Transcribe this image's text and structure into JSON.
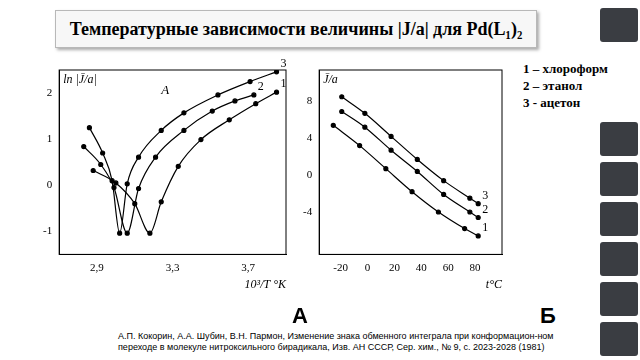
{
  "slide": {
    "title": "Температурные зависимости величины |J/a| для Pd(L₁)₂",
    "citation": "А.П. Кокорин, А.А. Шубин, В.Н. Пармон, Изменение знака обменного интеграла при конформацион-ном переходе в молекуле нитроксильного бирадикала, Изв. АН СССР, Сер. хим., № 9, с. 2023-2028 (1981)"
  },
  "chart_data": [
    {
      "type": "line",
      "title": "А",
      "annotations": [
        "A"
      ],
      "x_label": "10³/T °K",
      "y_label": "ln |J̄/a|",
      "xlim": [
        2.7,
        3.9
      ],
      "ylim": [
        -1.5,
        2.5
      ],
      "xticks": [
        {
          "value": 2.9,
          "label": "2,9"
        },
        {
          "value": 3.3,
          "label": "3,3"
        },
        {
          "value": 3.7,
          "label": "3,7"
        }
      ],
      "yticks": [
        -1,
        0,
        1,
        2
      ],
      "grid": false,
      "series": [
        {
          "name": "3",
          "color": "#000000",
          "marker": "circle",
          "line_style": "solid",
          "x": [
            2.86,
            2.93,
            2.98,
            3.02,
            3.06,
            3.12,
            3.24,
            3.36,
            3.54,
            3.71,
            3.85
          ],
          "values": [
            1.25,
            0.7,
            0.1,
            -1.04,
            0.03,
            0.61,
            1.19,
            1.57,
            1.96,
            2.25,
            2.46
          ]
        },
        {
          "name": "2",
          "color": "#000000",
          "marker": "circle",
          "line_style": "solid",
          "x": [
            2.83,
            2.92,
            2.99,
            3.06,
            3.12,
            3.21,
            3.36,
            3.51,
            3.63,
            3.73
          ],
          "values": [
            0.84,
            0.45,
            -0.05,
            -1.04,
            -0.07,
            0.61,
            1.19,
            1.61,
            1.83,
            1.96
          ]
        },
        {
          "name": "1",
          "color": "#000000",
          "marker": "circle",
          "line_style": "solid",
          "x": [
            2.88,
            3.0,
            3.1,
            3.18,
            3.24,
            3.33,
            3.45,
            3.6,
            3.74,
            3.85
          ],
          "values": [
            0.32,
            0.05,
            -0.4,
            -1.04,
            -0.36,
            0.41,
            0.99,
            1.42,
            1.77,
            2.02
          ]
        }
      ]
    },
    {
      "type": "line",
      "title": "Б",
      "annotations": [
        "1 – хлороформ",
        "2 – этанол",
        "3 - ацетон"
      ],
      "x_label": "t°C",
      "y_label": "J̄/a",
      "xlim": [
        -36,
        100
      ],
      "ylim": [
        -8.6,
        11.4
      ],
      "xticks": [
        -20,
        0,
        20,
        40,
        60,
        80
      ],
      "yticks": [
        -4,
        0,
        4,
        8
      ],
      "grid": false,
      "series": [
        {
          "name": "3",
          "color": "#000000",
          "marker": "circle",
          "line_style": "solid",
          "x": [
            -19.2,
            -2.0,
            17.5,
            37.0,
            56.6,
            76.1,
            82.3
          ],
          "values": [
            8.5,
            6.7,
            4.2,
            1.7,
            -0.6,
            -2.5,
            -3.1
          ]
        },
        {
          "name": "2",
          "color": "#000000",
          "marker": "circle",
          "line_style": "solid",
          "x": [
            -19.2,
            -2.0,
            17.5,
            37.0,
            56.6,
            76.1,
            82.3
          ],
          "values": [
            6.9,
            5.2,
            2.7,
            0.4,
            -2.1,
            -4.0,
            -4.6
          ]
        },
        {
          "name": "1",
          "color": "#000000",
          "marker": "circle",
          "line_style": "solid",
          "x": [
            -25.5,
            -5.9,
            13.6,
            33.1,
            52.7,
            72.2,
            82.3
          ],
          "values": [
            5.4,
            3.2,
            0.7,
            -1.8,
            -4.0,
            -5.8,
            -6.6
          ]
        }
      ]
    }
  ]
}
